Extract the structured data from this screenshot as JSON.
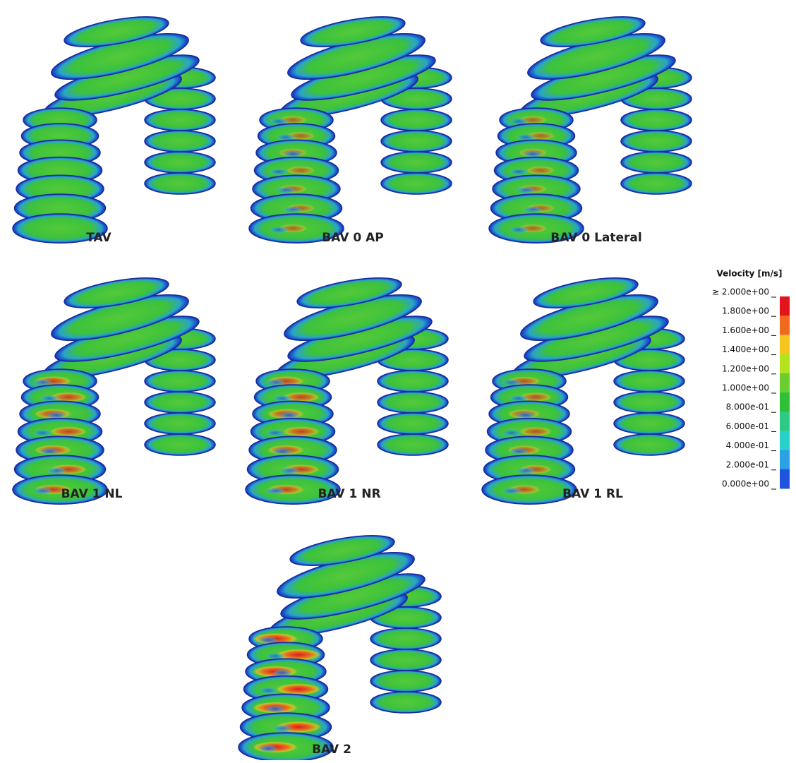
{
  "panels": [
    {
      "label": "TAV"
    },
    {
      "label": "BAV 0 AP"
    },
    {
      "label": "BAV 0 Lateral"
    },
    {
      "label": "BAV 1 NL"
    },
    {
      "label": "BAV 1 NR"
    },
    {
      "label": "BAV 1 RL"
    },
    {
      "label": "BAV 2"
    }
  ],
  "legend": {
    "title": "Velocity [m/s]",
    "labels": [
      "≥ 2.000e+00",
      "1.800e+00",
      "1.600e+00",
      "1.400e+00",
      "1.200e+00",
      "1.000e+00",
      "8.000e-01",
      "6.000e-01",
      "4.000e-01",
      "2.000e-01",
      "0.000e+00"
    ],
    "colors": [
      "#e3141b",
      "#f06a1e",
      "#f5c51f",
      "#b3e21f",
      "#6ccd2e",
      "#2fbf38",
      "#2ec982",
      "#29d2c8",
      "#2ba2e6",
      "#1f55de"
    ]
  }
}
